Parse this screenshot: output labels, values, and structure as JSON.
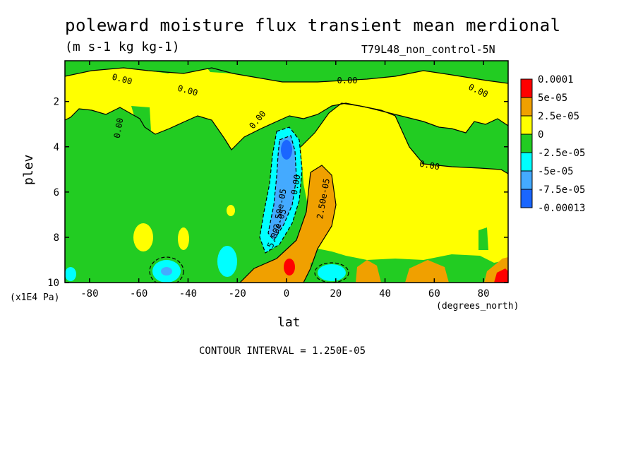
{
  "chart_data": {
    "type": "heatmap",
    "title": "poleward moisture flux transient mean merdional",
    "units": "(m s-1 kg kg-1)",
    "dataset": "T79L48_non_control-5N",
    "xlabel": "lat",
    "xunits": "(degrees_north)",
    "ylabel": "plev",
    "yunits": "(x1E4 Pa)",
    "xlim": [
      -90,
      90
    ],
    "ylim": [
      10,
      0.2
    ],
    "x_ticks": [
      "-80",
      "-60",
      "-40",
      "-20",
      "0",
      "20",
      "40",
      "60",
      "80"
    ],
    "y_ticks": [
      "2",
      "4",
      "6",
      "8",
      "10"
    ],
    "contour_interval": "CONTOUR INTERVAL = 1.250E-05",
    "contour_labels": [
      "0.00",
      "0.00",
      "0.00",
      "0.00",
      "0.00",
      "0.00",
      "0.00",
      "0.00",
      "-2.50e-05",
      "-5.00e-05",
      "2.50e-05"
    ],
    "legend": {
      "labels": [
        "0.0001",
        "5e-05",
        "2.5e-05",
        "0",
        "-2.5e-05",
        "-5e-05",
        "-7.5e-05",
        "-0.00013"
      ],
      "colors": [
        "#ff0000",
        "#f0a000",
        "#ffff00",
        "#22cc22",
        "#00ffff",
        "#44aaff",
        "#1a66ff"
      ]
    },
    "palette": {
      "positive_high": "#ff0000",
      "positive_mid": "#f0a000",
      "near_zero_pos": "#ffff00",
      "near_zero_neg": "#22cc22",
      "negative_low": "#00ffff",
      "negative_mid": "#44aaff",
      "negative_high": "#1a66ff"
    }
  }
}
